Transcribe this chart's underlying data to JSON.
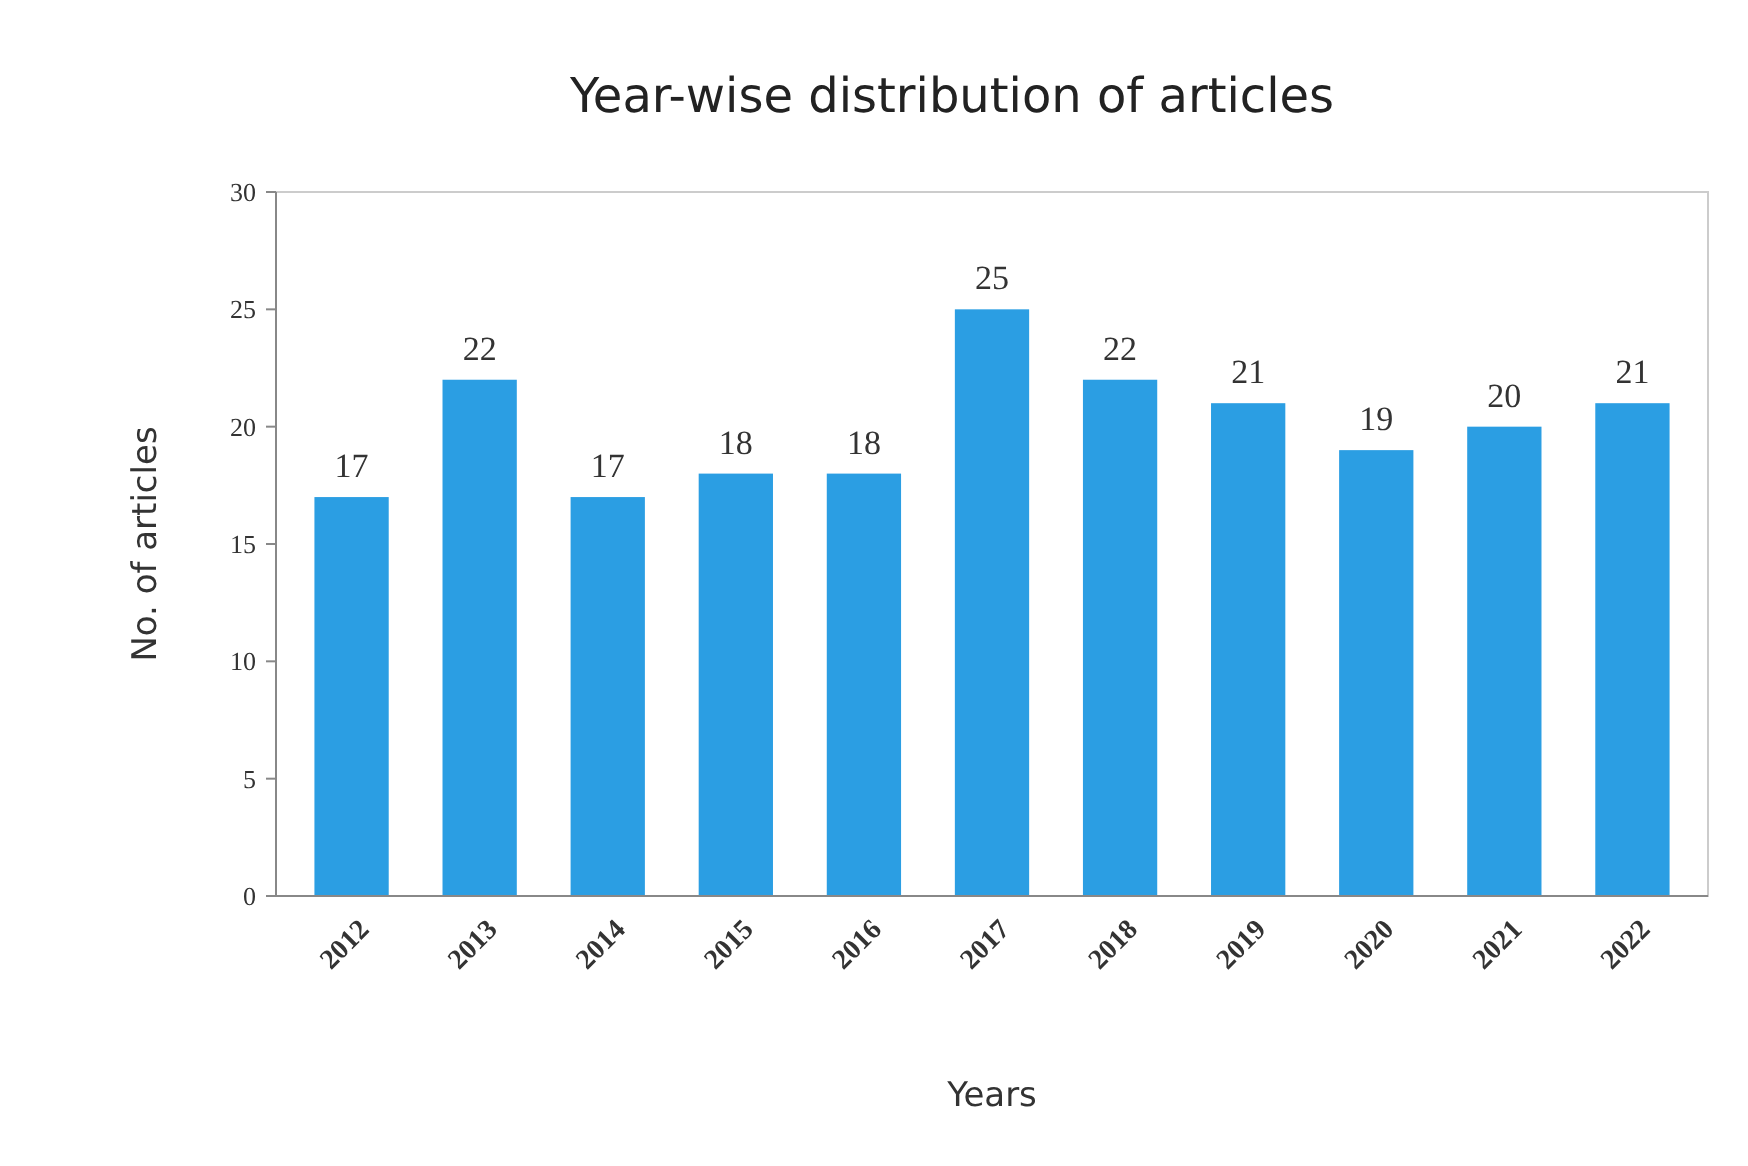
{
  "chart_data": {
    "type": "bar",
    "title": "Year-wise distribution of articles",
    "xlabel": "Years",
    "ylabel": "No. of articles",
    "categories": [
      "2012",
      "2013",
      "2014",
      "2015",
      "2016",
      "2017",
      "2018",
      "2019",
      "2020",
      "2021",
      "2022"
    ],
    "values": [
      17,
      22,
      17,
      18,
      18,
      25,
      22,
      21,
      19,
      20,
      21
    ],
    "color": "#2b9ee3",
    "ylim": [
      0,
      30
    ],
    "yticks": [
      0,
      5,
      10,
      15,
      20,
      25,
      30
    ],
    "grid": false,
    "data_labels": true
  }
}
